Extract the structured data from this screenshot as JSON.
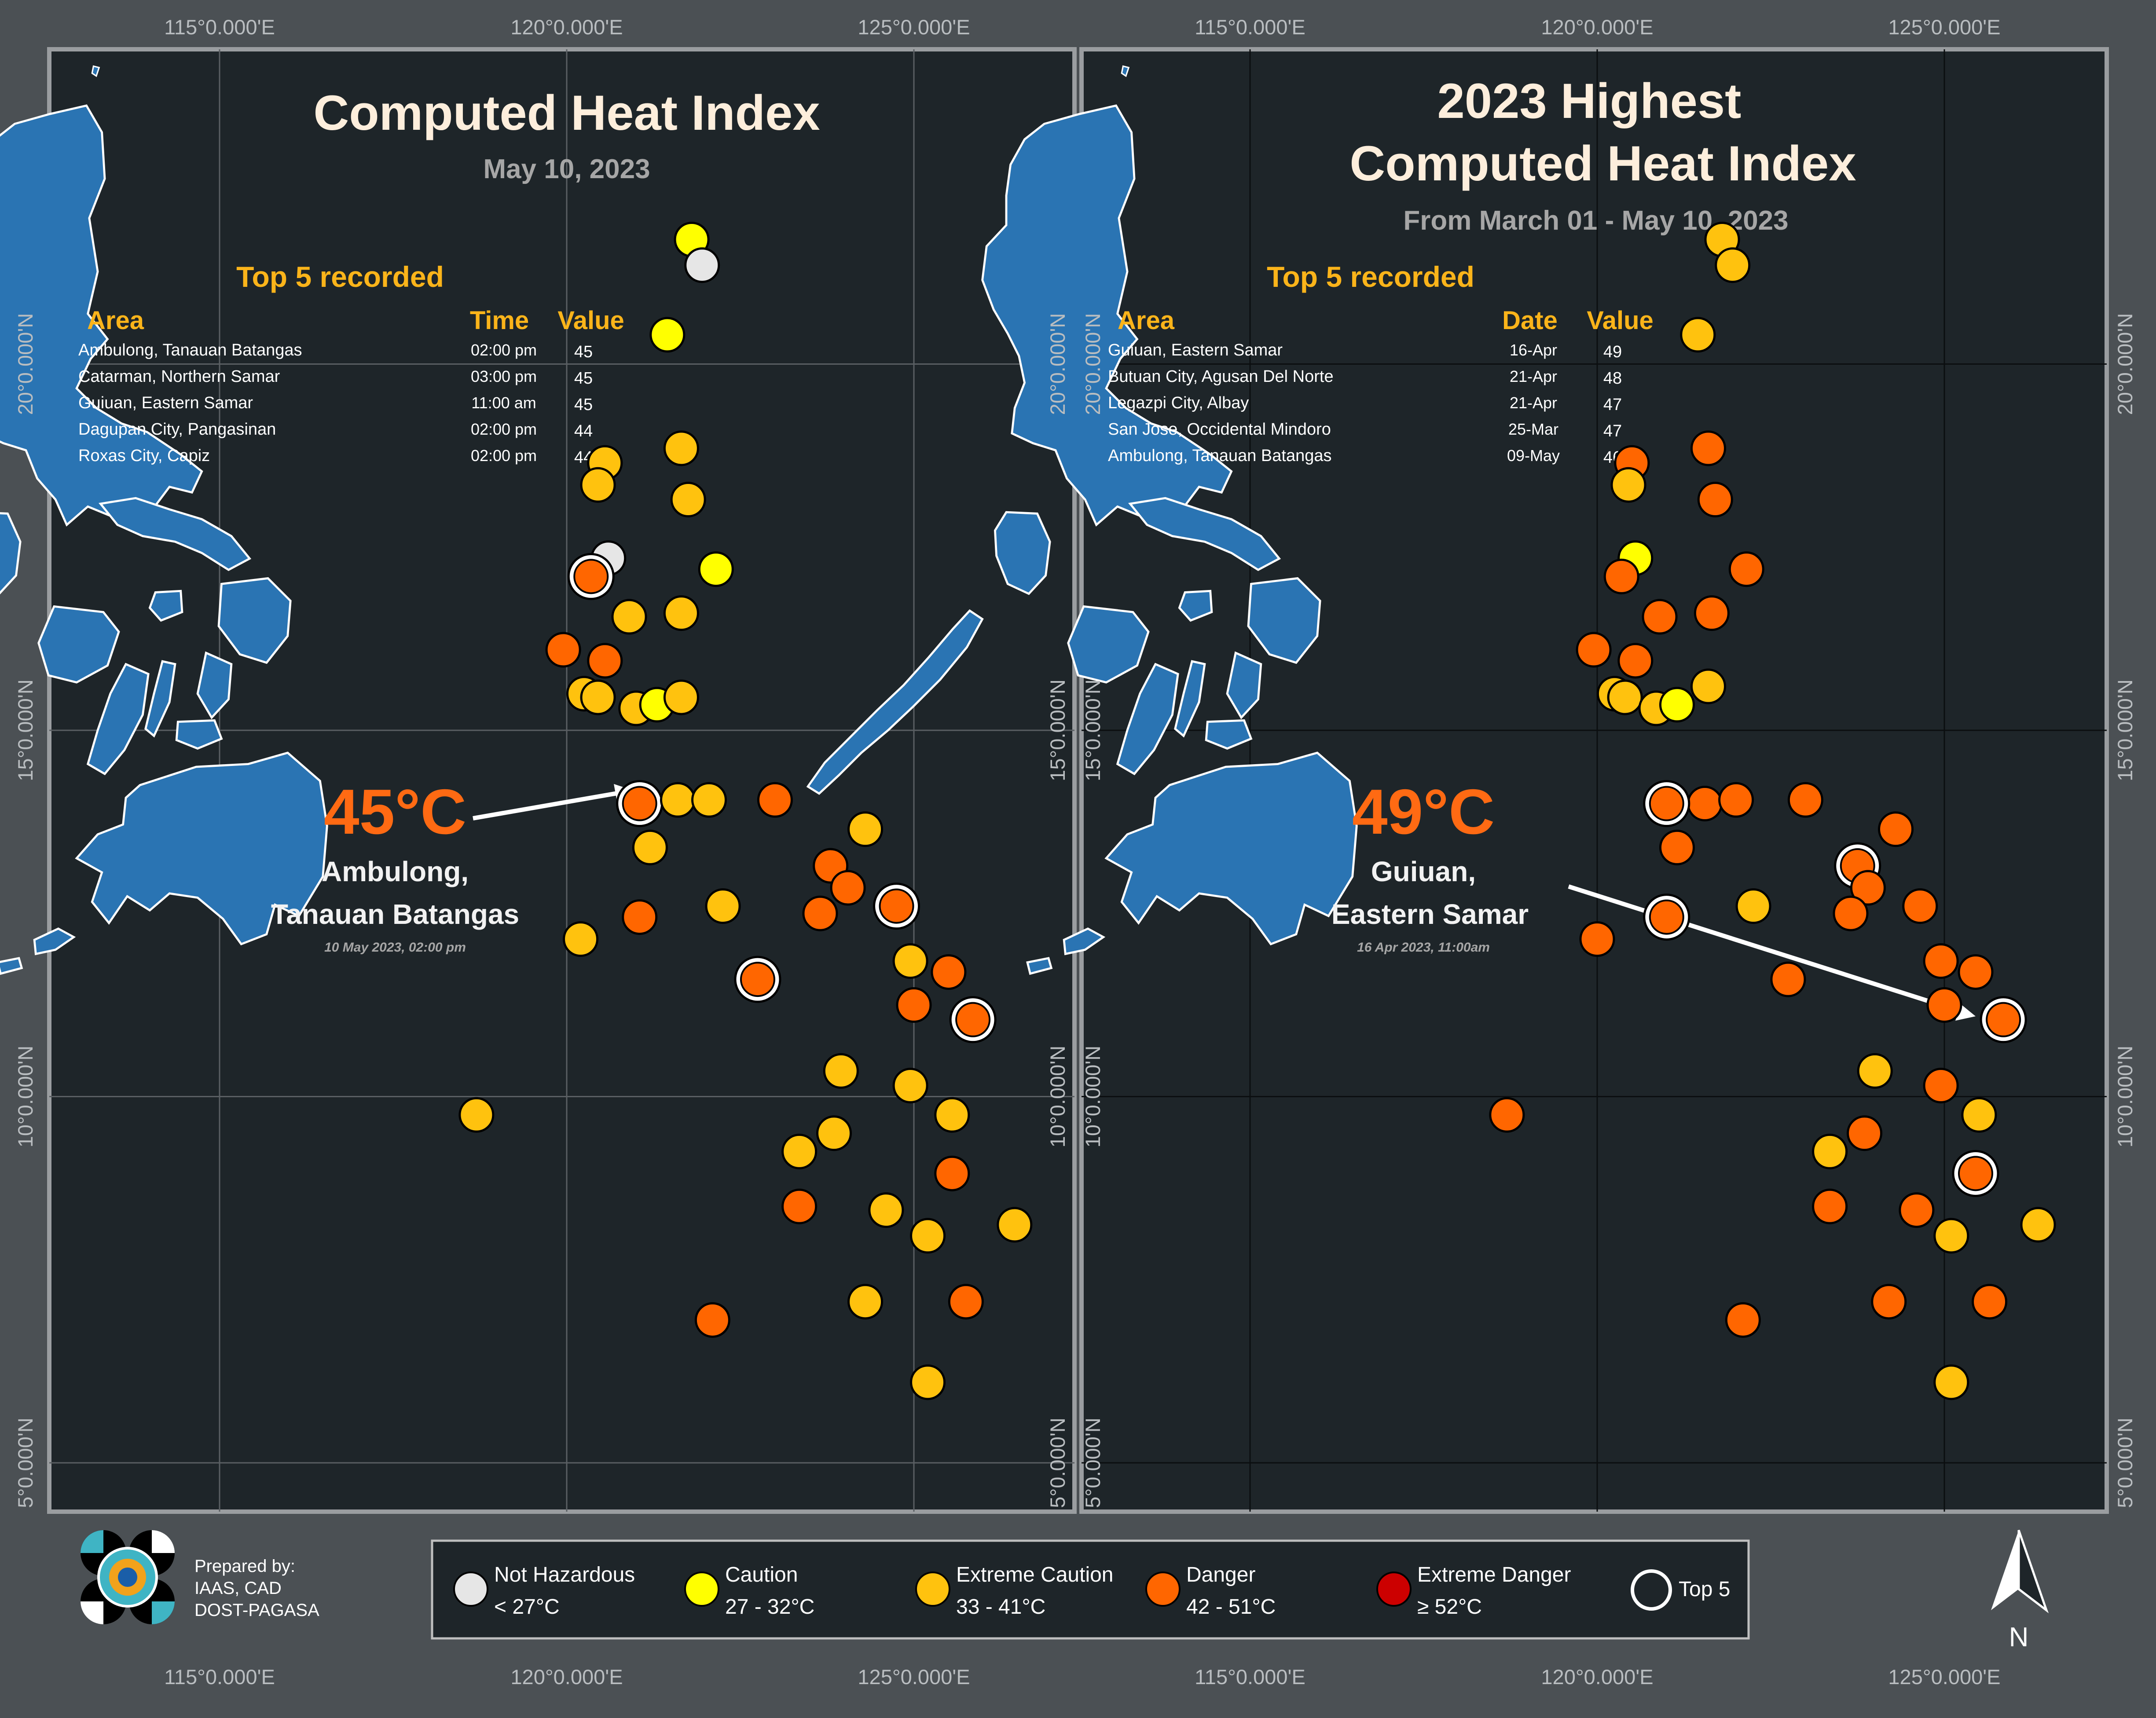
{
  "colors": {
    "background_outer": "#4b5054",
    "panel": "#1e2529",
    "land": "#2a74b3",
    "not_hazardous": "#e6e6e6",
    "caution": "#ffff00",
    "extreme_caution": "#ffc20e",
    "danger": "#ff6600",
    "extreme_danger": "#cc0000",
    "title": "#fdeedc",
    "subtitle": "#a6a6a6",
    "accent": "#fbb41a",
    "big_value": "#ff6a13"
  },
  "coordinates": {
    "lon_labels": [
      "115°0.000'E",
      "120°0.000'E",
      "125°0.000'E"
    ],
    "lat_labels": [
      "20°0.000'N",
      "15°0.000'N",
      "10°0.000'N",
      "5°0.000'N"
    ]
  },
  "left_panel": {
    "title": "Computed Heat Index",
    "subtitle": "May 10, 2023",
    "top5_heading": "Top 5 recorded",
    "col_area": "Area",
    "col_second": "Time",
    "col_value": "Value",
    "rows": [
      {
        "area": "Ambulong, Tanauan Batangas",
        "second": "02:00 pm",
        "value": "45"
      },
      {
        "area": "Catarman, Northern Samar",
        "second": "03:00 pm",
        "value": "45"
      },
      {
        "area": "Guiuan, Eastern Samar",
        "second": "11:00 am",
        "value": "45"
      },
      {
        "area": "Dagupan City, Pangasinan",
        "second": "02:00 pm",
        "value": "44"
      },
      {
        "area": "Roxas City, Capiz",
        "second": "02:00 pm",
        "value": "44"
      }
    ],
    "big_value": "45°C",
    "station_line1": "Ambulong,",
    "station_line2": "Tanauan Batangas",
    "timestamp": "10 May 2023, 02:00 pm",
    "stations": [
      {
        "lon": 121.8,
        "lat": 21.7,
        "cat": "caution"
      },
      {
        "lon": 121.95,
        "lat": 21.35,
        "cat": "not_hazardous"
      },
      {
        "lon": 121.45,
        "lat": 20.4,
        "cat": "caution"
      },
      {
        "lon": 121.65,
        "lat": 18.85,
        "cat": "extreme_caution"
      },
      {
        "lon": 120.55,
        "lat": 18.65,
        "cat": "extreme_caution"
      },
      {
        "lon": 120.45,
        "lat": 18.35,
        "cat": "extreme_caution"
      },
      {
        "lon": 121.75,
        "lat": 18.15,
        "cat": "extreme_caution"
      },
      {
        "lon": 120.6,
        "lat": 17.35,
        "cat": "not_hazardous"
      },
      {
        "lon": 120.35,
        "lat": 17.1,
        "cat": "danger",
        "top5": true
      },
      {
        "lon": 122.15,
        "lat": 17.2,
        "cat": "caution"
      },
      {
        "lon": 120.9,
        "lat": 16.55,
        "cat": "extreme_caution"
      },
      {
        "lon": 121.65,
        "lat": 16.6,
        "cat": "extreme_caution"
      },
      {
        "lon": 119.95,
        "lat": 16.1,
        "cat": "danger"
      },
      {
        "lon": 120.55,
        "lat": 15.95,
        "cat": "danger"
      },
      {
        "lon": 120.25,
        "lat": 15.5,
        "cat": "extreme_caution"
      },
      {
        "lon": 120.45,
        "lat": 15.45,
        "cat": "extreme_caution"
      },
      {
        "lon": 121.0,
        "lat": 15.3,
        "cat": "extreme_caution"
      },
      {
        "lon": 121.3,
        "lat": 15.35,
        "cat": "caution"
      },
      {
        "lon": 121.65,
        "lat": 15.45,
        "cat": "extreme_caution"
      },
      {
        "lon": 121.05,
        "lat": 14.0,
        "cat": "danger",
        "top5": true
      },
      {
        "lon": 121.6,
        "lat": 14.05,
        "cat": "extreme_caution"
      },
      {
        "lon": 122.05,
        "lat": 14.05,
        "cat": "extreme_caution"
      },
      {
        "lon": 121.2,
        "lat": 13.4,
        "cat": "extreme_caution"
      },
      {
        "lon": 123.0,
        "lat": 14.05,
        "cat": "danger"
      },
      {
        "lon": 124.3,
        "lat": 13.65,
        "cat": "extreme_caution"
      },
      {
        "lon": 123.8,
        "lat": 13.15,
        "cat": "danger"
      },
      {
        "lon": 124.05,
        "lat": 12.85,
        "cat": "danger"
      },
      {
        "lon": 122.25,
        "lat": 12.6,
        "cat": "extreme_caution"
      },
      {
        "lon": 123.65,
        "lat": 12.5,
        "cat": "danger"
      },
      {
        "lon": 124.75,
        "lat": 12.6,
        "cat": "danger",
        "top5": true
      },
      {
        "lon": 121.05,
        "lat": 12.45,
        "cat": "danger"
      },
      {
        "lon": 120.2,
        "lat": 12.15,
        "cat": "extreme_caution"
      },
      {
        "lon": 122.75,
        "lat": 11.6,
        "cat": "danger",
        "top5": true
      },
      {
        "lon": 124.95,
        "lat": 11.85,
        "cat": "extreme_caution"
      },
      {
        "lon": 125.5,
        "lat": 11.7,
        "cat": "danger"
      },
      {
        "lon": 125.0,
        "lat": 11.25,
        "cat": "danger"
      },
      {
        "lon": 125.85,
        "lat": 11.05,
        "cat": "danger",
        "top5": true
      },
      {
        "lon": 123.95,
        "lat": 10.35,
        "cat": "extreme_caution"
      },
      {
        "lon": 124.95,
        "lat": 10.15,
        "cat": "extreme_caution"
      },
      {
        "lon": 118.7,
        "lat": 9.75,
        "cat": "extreme_caution"
      },
      {
        "lon": 125.55,
        "lat": 9.75,
        "cat": "extreme_caution"
      },
      {
        "lon": 123.85,
        "lat": 9.5,
        "cat": "extreme_caution"
      },
      {
        "lon": 123.35,
        "lat": 9.25,
        "cat": "extreme_caution"
      },
      {
        "lon": 125.55,
        "lat": 8.95,
        "cat": "danger"
      },
      {
        "lon": 123.35,
        "lat": 8.5,
        "cat": "danger"
      },
      {
        "lon": 124.6,
        "lat": 8.45,
        "cat": "extreme_caution"
      },
      {
        "lon": 126.45,
        "lat": 8.25,
        "cat": "extreme_caution"
      },
      {
        "lon": 125.2,
        "lat": 8.1,
        "cat": "extreme_caution"
      },
      {
        "lon": 124.3,
        "lat": 7.2,
        "cat": "extreme_caution"
      },
      {
        "lon": 125.75,
        "lat": 7.2,
        "cat": "danger"
      },
      {
        "lon": 122.1,
        "lat": 6.95,
        "cat": "danger"
      },
      {
        "lon": 125.2,
        "lat": 6.1,
        "cat": "extreme_caution"
      }
    ]
  },
  "right_panel": {
    "title_line1": "2023 Highest",
    "title_line2": "Computed Heat Index",
    "subtitle": "From March 01 - May 10, 2023",
    "top5_heading": "Top 5 recorded",
    "col_area": "Area",
    "col_second": "Date",
    "col_value": "Value",
    "rows": [
      {
        "area": "Guiuan, Eastern Samar",
        "second": "16-Apr",
        "value": "49"
      },
      {
        "area": "Butuan City, Agusan Del Norte",
        "second": "21-Apr",
        "value": "48"
      },
      {
        "area": "Legazpi City, Albay",
        "second": "21-Apr",
        "value": "47"
      },
      {
        "area": "San Jose, Occidental Mindoro",
        "second": "25-Mar",
        "value": "47"
      },
      {
        "area": "Ambulong, Tanauan Batangas",
        "second": "09-May",
        "value": "46"
      }
    ],
    "big_value": "49°C",
    "station_line1": "Guiuan,",
    "station_line2": "Eastern Samar",
    "timestamp": "16 Apr 2023, 11:00am",
    "stations": [
      {
        "lon": 121.8,
        "lat": 21.7,
        "cat": "extreme_caution"
      },
      {
        "lon": 121.95,
        "lat": 21.35,
        "cat": "extreme_caution"
      },
      {
        "lon": 121.45,
        "lat": 20.4,
        "cat": "extreme_caution"
      },
      {
        "lon": 121.6,
        "lat": 18.85,
        "cat": "danger"
      },
      {
        "lon": 120.5,
        "lat": 18.65,
        "cat": "danger"
      },
      {
        "lon": 120.45,
        "lat": 18.35,
        "cat": "extreme_caution"
      },
      {
        "lon": 121.7,
        "lat": 18.15,
        "cat": "danger"
      },
      {
        "lon": 120.55,
        "lat": 17.35,
        "cat": "caution"
      },
      {
        "lon": 120.35,
        "lat": 17.1,
        "cat": "danger"
      },
      {
        "lon": 122.15,
        "lat": 17.2,
        "cat": "danger"
      },
      {
        "lon": 120.9,
        "lat": 16.55,
        "cat": "danger"
      },
      {
        "lon": 121.65,
        "lat": 16.6,
        "cat": "danger"
      },
      {
        "lon": 119.95,
        "lat": 16.1,
        "cat": "danger"
      },
      {
        "lon": 120.55,
        "lat": 15.95,
        "cat": "danger"
      },
      {
        "lon": 121.6,
        "lat": 15.6,
        "cat": "extreme_caution"
      },
      {
        "lon": 120.25,
        "lat": 15.5,
        "cat": "extreme_caution"
      },
      {
        "lon": 120.4,
        "lat": 15.45,
        "cat": "extreme_caution"
      },
      {
        "lon": 120.85,
        "lat": 15.3,
        "cat": "extreme_caution"
      },
      {
        "lon": 121.15,
        "lat": 15.35,
        "cat": "caution"
      },
      {
        "lon": 121.55,
        "lat": 14.0,
        "cat": "danger"
      },
      {
        "lon": 121.0,
        "lat": 14.0,
        "cat": "danger",
        "top5": true
      },
      {
        "lon": 122.0,
        "lat": 14.05,
        "cat": "danger"
      },
      {
        "lon": 123.0,
        "lat": 14.05,
        "cat": "danger"
      },
      {
        "lon": 121.15,
        "lat": 13.4,
        "cat": "danger"
      },
      {
        "lon": 124.3,
        "lat": 13.65,
        "cat": "danger"
      },
      {
        "lon": 123.75,
        "lat": 13.15,
        "cat": "danger",
        "top5": true
      },
      {
        "lon": 123.9,
        "lat": 12.85,
        "cat": "danger"
      },
      {
        "lon": 122.25,
        "lat": 12.6,
        "cat": "extreme_caution"
      },
      {
        "lon": 123.65,
        "lat": 12.5,
        "cat": "danger"
      },
      {
        "lon": 124.65,
        "lat": 12.6,
        "cat": "danger"
      },
      {
        "lon": 121.0,
        "lat": 12.45,
        "cat": "danger",
        "top5": true
      },
      {
        "lon": 120.0,
        "lat": 12.15,
        "cat": "danger"
      },
      {
        "lon": 122.75,
        "lat": 11.6,
        "cat": "danger"
      },
      {
        "lon": 124.95,
        "lat": 11.85,
        "cat": "danger"
      },
      {
        "lon": 125.45,
        "lat": 11.7,
        "cat": "danger"
      },
      {
        "lon": 125.0,
        "lat": 11.25,
        "cat": "danger"
      },
      {
        "lon": 125.85,
        "lat": 11.05,
        "cat": "danger",
        "top5": true
      },
      {
        "lon": 124.0,
        "lat": 10.35,
        "cat": "extreme_caution"
      },
      {
        "lon": 124.95,
        "lat": 10.15,
        "cat": "danger"
      },
      {
        "lon": 118.7,
        "lat": 9.75,
        "cat": "danger"
      },
      {
        "lon": 125.5,
        "lat": 9.75,
        "cat": "extreme_caution"
      },
      {
        "lon": 123.85,
        "lat": 9.5,
        "cat": "danger"
      },
      {
        "lon": 123.35,
        "lat": 9.25,
        "cat": "extreme_caution"
      },
      {
        "lon": 125.45,
        "lat": 8.95,
        "cat": "danger",
        "top5": true
      },
      {
        "lon": 123.35,
        "lat": 8.5,
        "cat": "danger"
      },
      {
        "lon": 124.6,
        "lat": 8.45,
        "cat": "danger"
      },
      {
        "lon": 126.35,
        "lat": 8.25,
        "cat": "extreme_caution"
      },
      {
        "lon": 125.1,
        "lat": 8.1,
        "cat": "extreme_caution"
      },
      {
        "lon": 124.2,
        "lat": 7.2,
        "cat": "danger"
      },
      {
        "lon": 125.65,
        "lat": 7.2,
        "cat": "danger"
      },
      {
        "lon": 122.1,
        "lat": 6.95,
        "cat": "danger"
      },
      {
        "lon": 125.1,
        "lat": 6.1,
        "cat": "extreme_caution"
      }
    ]
  },
  "prepared_by": {
    "line1": "Prepared by:",
    "line2": "IAAS, CAD",
    "line3": "DOST-PAGASA",
    "logo": "pagasa-logo"
  },
  "legend": {
    "items": [
      {
        "cat": "not_hazardous",
        "label": "Not Hazardous",
        "range": "< 27°C"
      },
      {
        "cat": "caution",
        "label": "Caution",
        "range": "27 - 32°C"
      },
      {
        "cat": "extreme_caution",
        "label": "Extreme Caution",
        "range": "33 - 41°C"
      },
      {
        "cat": "danger",
        "label": "Danger",
        "range": "42 - 51°C"
      },
      {
        "cat": "extreme_danger",
        "label": "Extreme Danger",
        "range": "≥ 52°C"
      }
    ],
    "top5_label": "Top 5"
  },
  "north_arrow": {
    "label": "N",
    "icon": "north-arrow-icon"
  }
}
